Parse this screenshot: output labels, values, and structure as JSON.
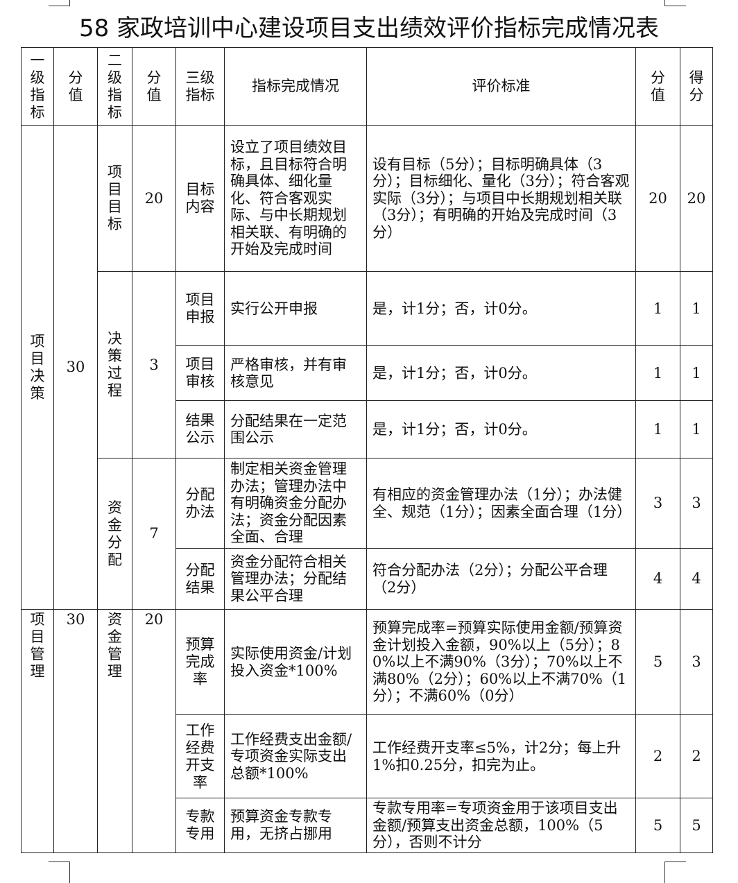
{
  "title": "58 家政培训中心建设项目支出绩效评价指标完成情况表",
  "headers": [
    "一级指标",
    "分值",
    "二级指标",
    "分值",
    "三级指标",
    "指标完成情况",
    "评价标准",
    "分值",
    "得分"
  ],
  "level1": [
    {
      "name": "项目决策",
      "score": "30"
    },
    {
      "name": "项目管理",
      "score": "30"
    }
  ],
  "level2": [
    {
      "name": "项目目标",
      "score": "20"
    },
    {
      "name": "决策过程",
      "score": "3"
    },
    {
      "name": "资金分配",
      "score": "7"
    },
    {
      "name": "资金管理",
      "score": "20"
    }
  ],
  "rows": [
    {
      "indicator": "目标内容",
      "completion": "设立了项目绩效目标，且目标符合明确具体、细化量化、符合客观实际、与中长期规划相关联、有明确的开始及完成时间",
      "standard": "设有目标（5分）；目标明确具体（3分）；目标细化、量化（3分）；符合客观实际（3分）；与项目中长期规划相关联（3分）；有明确的开始及完成时间（3分）",
      "score": "20",
      "got": "20"
    },
    {
      "indicator": "项目申报",
      "completion": "实行公开申报",
      "standard": "是，计1分；否，计0分。",
      "score": "1",
      "got": "1"
    },
    {
      "indicator": "项目审核",
      "completion": "严格审核，并有审核意见",
      "standard": "是，计1分；否，计0分。",
      "score": "1",
      "got": "1"
    },
    {
      "indicator": "结果公示",
      "completion": "分配结果在一定范围公示",
      "standard": "是，计1分；否，计0分。",
      "score": "1",
      "got": "1"
    },
    {
      "indicator": "分配办法",
      "completion": "制定相关资金管理办法；管理办法中有明确资金分配办法；资金分配因素全面、合理",
      "standard": "有相应的资金管理办法（1分）；办法健全、规范（1分）；因素全面合理（1分）",
      "score": "3",
      "got": "3"
    },
    {
      "indicator": "分配结果",
      "completion": "资金分配符合相关管理办法；分配结果公平合理",
      "standard": "符合分配办法（2分）；分配公平合理（2分）",
      "score": "4",
      "got": "4"
    },
    {
      "indicator": "预算完成率",
      "completion": "实际使用资金/计划投入资金*100%",
      "standard": "预算完成率=预算实际使用金额/预算资金计划投入金额，90%以上（5分）；80%以上不满90%（3分）；70%以上不满80%（2分）；60%以上不满70%（1分）；不满60%（0分）",
      "score": "5",
      "got": "3"
    },
    {
      "indicator": "工作经费开支率",
      "completion": "工作经费支出金额/专项资金实际支出总额*100%",
      "standard": "工作经费开支率≤5%，计2分；每上升1%扣0.25分，扣完为止。",
      "score": "2",
      "got": "2"
    },
    {
      "indicator": "专款专用",
      "completion": "预算资金专款专用，无挤占挪用",
      "standard": "专款专用率=专项资金用于该项目支出金额/预算支出资金总额，100%（5分），否则不计分",
      "score": "5",
      "got": "5"
    }
  ]
}
